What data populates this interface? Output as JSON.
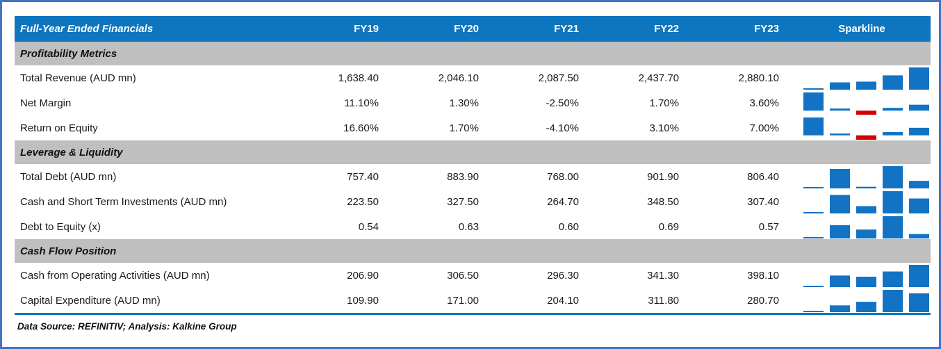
{
  "header": {
    "title": "Full-Year Ended Financials",
    "columns": [
      "FY19",
      "FY20",
      "FY21",
      "FY22",
      "FY23"
    ],
    "sparkline_label": "Sparkline"
  },
  "footer": {
    "source_note": "Data Source: REFINITIV; Analysis: Kalkine Group"
  },
  "colors": {
    "header_bg": "#0E76BE",
    "header_text": "#FFFFFF",
    "section_bg": "#BFBFBF",
    "spark_positive": "#1273C4",
    "spark_negative": "#D40000",
    "outer_border": "#4573C4",
    "bottom_rule": "#0E76BE"
  },
  "chart_data": {
    "type": "table",
    "title": "Full-Year Ended Financials",
    "columns": [
      "FY19",
      "FY20",
      "FY21",
      "FY22",
      "FY23"
    ],
    "sparkline_type": "bar",
    "sections": [
      {
        "title": "Profitability Metrics",
        "rows": [
          {
            "label": "Total Revenue (AUD mn)",
            "display": [
              "1,638.40",
              "2,046.10",
              "2,087.50",
              "2,437.70",
              "2,880.10"
            ],
            "values": [
              1638.4,
              2046.1,
              2087.5,
              2437.7,
              2880.1
            ]
          },
          {
            "label": "Net Margin",
            "display": [
              "11.10%",
              "1.30%",
              "-2.50%",
              "1.70%",
              "3.60%"
            ],
            "values": [
              11.1,
              1.3,
              -2.5,
              1.7,
              3.6
            ]
          },
          {
            "label": "Return on Equity",
            "display": [
              "16.60%",
              "1.70%",
              "-4.10%",
              "3.10%",
              "7.00%"
            ],
            "values": [
              16.6,
              1.7,
              -4.1,
              3.1,
              7.0
            ]
          }
        ]
      },
      {
        "title": "Leverage & Liquidity",
        "rows": [
          {
            "label": "Total Debt (AUD mn)",
            "display": [
              "757.40",
              "883.90",
              "768.00",
              "901.90",
              "806.40"
            ],
            "values": [
              757.4,
              883.9,
              768.0,
              901.9,
              806.4
            ]
          },
          {
            "label": "Cash and Short Term Investments (AUD mn)",
            "display": [
              "223.50",
              "327.50",
              "264.70",
              "348.50",
              "307.40"
            ],
            "values": [
              223.5,
              327.5,
              264.7,
              348.5,
              307.4
            ]
          },
          {
            "label": "Debt to Equity (x)",
            "display": [
              "0.54",
              "0.63",
              "0.60",
              "0.69",
              "0.57"
            ],
            "values": [
              0.54,
              0.63,
              0.6,
              0.69,
              0.57
            ]
          }
        ]
      },
      {
        "title": "Cash Flow Position",
        "rows": [
          {
            "label": "Cash from Operating Activities (AUD mn)",
            "display": [
              "206.90",
              "306.50",
              "296.30",
              "341.30",
              "398.10"
            ],
            "values": [
              206.9,
              306.5,
              296.3,
              341.3,
              398.1
            ]
          },
          {
            "label": "Capital Expenditure (AUD mn)",
            "display": [
              "109.90",
              "171.00",
              "204.10",
              "311.80",
              "280.70"
            ],
            "values": [
              109.9,
              171.0,
              204.1,
              311.8,
              280.7
            ]
          }
        ]
      }
    ]
  }
}
